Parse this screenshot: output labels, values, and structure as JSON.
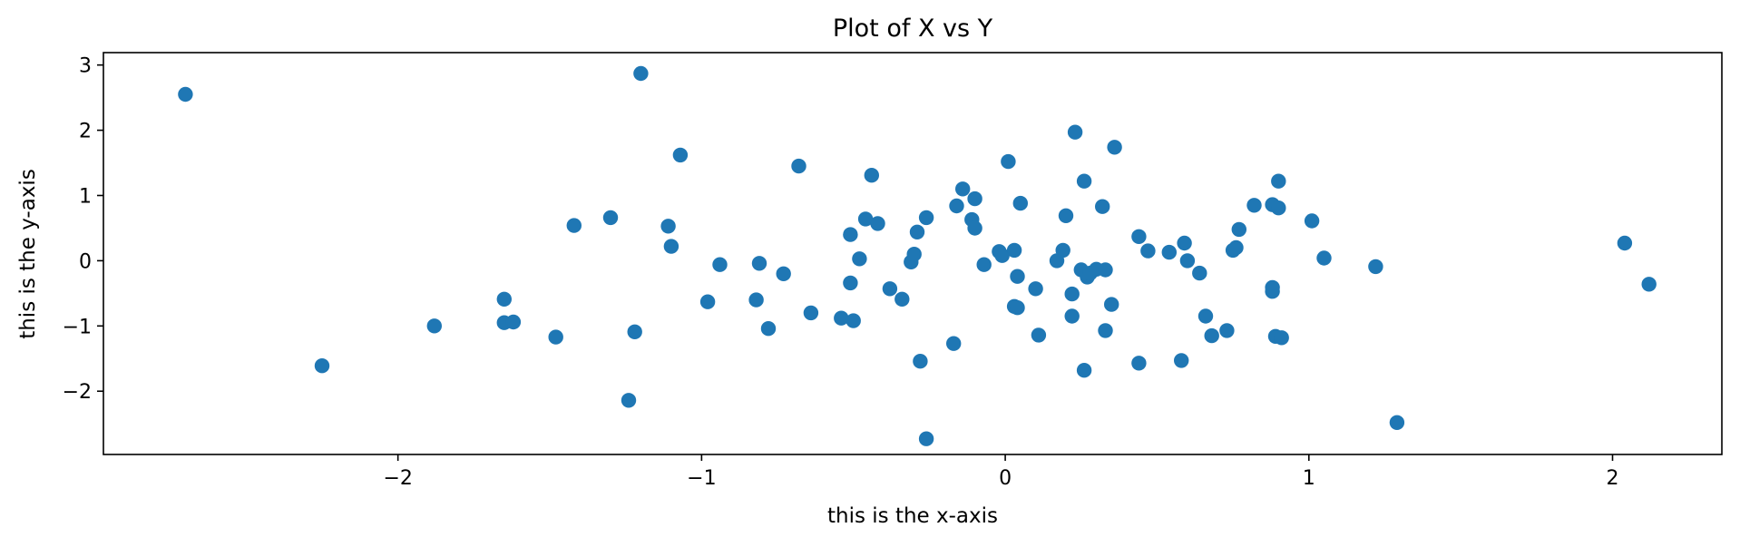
{
  "chart_data": {
    "type": "scatter",
    "title": "Plot of X vs Y",
    "xlabel": "this is the x-axis",
    "ylabel": "this is the y-axis",
    "xlim": [
      -2.97,
      2.36
    ],
    "ylim": [
      -2.97,
      3.19
    ],
    "xticks": [
      -2,
      -1,
      0,
      1,
      2
    ],
    "yticks": [
      -2,
      -1,
      0,
      1,
      2,
      3
    ],
    "xtick_labels": [
      "−2",
      "−1",
      "0",
      "1",
      "2"
    ],
    "ytick_labels": [
      "−2",
      "−1",
      "0",
      "1",
      "2",
      "3"
    ],
    "grid": false,
    "color": "#1f77b4",
    "points": [
      [
        -2.7,
        2.55
      ],
      [
        -1.2,
        2.87
      ],
      [
        -2.25,
        -1.61
      ],
      [
        -1.88,
        -1.0
      ],
      [
        -1.65,
        -0.59
      ],
      [
        -1.65,
        -0.95
      ],
      [
        -1.62,
        -0.94
      ],
      [
        -1.48,
        -1.17
      ],
      [
        -1.42,
        0.54
      ],
      [
        -1.3,
        0.66
      ],
      [
        -1.24,
        -2.14
      ],
      [
        -1.22,
        -1.09
      ],
      [
        -1.11,
        0.53
      ],
      [
        -1.1,
        0.22
      ],
      [
        -1.07,
        1.62
      ],
      [
        -0.98,
        -0.63
      ],
      [
        -0.94,
        -0.06
      ],
      [
        -0.81,
        -0.04
      ],
      [
        -0.82,
        -0.6
      ],
      [
        -0.78,
        -1.04
      ],
      [
        -0.73,
        -0.2
      ],
      [
        -0.68,
        1.45
      ],
      [
        -0.64,
        -0.8
      ],
      [
        -0.54,
        -0.88
      ],
      [
        -0.51,
        -0.34
      ],
      [
        -0.51,
        0.4
      ],
      [
        -0.5,
        -0.92
      ],
      [
        -0.48,
        0.03
      ],
      [
        -0.46,
        0.64
      ],
      [
        -0.44,
        1.31
      ],
      [
        -0.42,
        0.57
      ],
      [
        -0.38,
        -0.43
      ],
      [
        -0.34,
        -0.59
      ],
      [
        -0.31,
        -0.02
      ],
      [
        -0.3,
        0.1
      ],
      [
        -0.29,
        0.44
      ],
      [
        -0.28,
        -1.54
      ],
      [
        -0.26,
        0.66
      ],
      [
        -0.26,
        -2.73
      ],
      [
        -0.17,
        -1.27
      ],
      [
        -0.16,
        0.84
      ],
      [
        -0.14,
        1.1
      ],
      [
        -0.11,
        0.63
      ],
      [
        -0.1,
        0.5
      ],
      [
        -0.1,
        0.95
      ],
      [
        -0.07,
        -0.06
      ],
      [
        -0.02,
        0.14
      ],
      [
        -0.01,
        0.08
      ],
      [
        0.01,
        1.52
      ],
      [
        0.03,
        0.16
      ],
      [
        0.03,
        -0.7
      ],
      [
        0.04,
        -0.24
      ],
      [
        0.04,
        -0.72
      ],
      [
        0.05,
        0.88
      ],
      [
        0.1,
        -0.43
      ],
      [
        0.11,
        -1.14
      ],
      [
        0.17,
        0.0
      ],
      [
        0.19,
        0.16
      ],
      [
        0.2,
        0.69
      ],
      [
        0.22,
        -0.51
      ],
      [
        0.22,
        -0.85
      ],
      [
        0.23,
        1.97
      ],
      [
        0.25,
        -0.14
      ],
      [
        0.26,
        1.22
      ],
      [
        0.26,
        -1.68
      ],
      [
        0.27,
        -0.25
      ],
      [
        0.28,
        -0.19
      ],
      [
        0.3,
        -0.13
      ],
      [
        0.32,
        0.83
      ],
      [
        0.33,
        -0.14
      ],
      [
        0.33,
        -1.07
      ],
      [
        0.35,
        -0.67
      ],
      [
        0.36,
        1.74
      ],
      [
        0.44,
        0.37
      ],
      [
        0.44,
        -1.57
      ],
      [
        0.47,
        0.15
      ],
      [
        0.54,
        0.13
      ],
      [
        0.58,
        -1.53
      ],
      [
        0.59,
        0.27
      ],
      [
        0.6,
        0.0
      ],
      [
        0.64,
        -0.19
      ],
      [
        0.66,
        -0.85
      ],
      [
        0.68,
        -1.15
      ],
      [
        0.73,
        -1.07
      ],
      [
        0.75,
        0.16
      ],
      [
        0.76,
        0.2
      ],
      [
        0.77,
        0.48
      ],
      [
        0.82,
        0.85
      ],
      [
        0.88,
        -0.47
      ],
      [
        0.88,
        -0.41
      ],
      [
        0.88,
        0.86
      ],
      [
        0.89,
        -1.16
      ],
      [
        0.9,
        0.81
      ],
      [
        0.9,
        1.22
      ],
      [
        0.91,
        -1.18
      ],
      [
        1.01,
        0.61
      ],
      [
        1.05,
        0.04
      ],
      [
        1.22,
        -0.09
      ],
      [
        1.29,
        -2.48
      ],
      [
        2.04,
        0.27
      ],
      [
        2.12,
        -0.36
      ]
    ]
  }
}
